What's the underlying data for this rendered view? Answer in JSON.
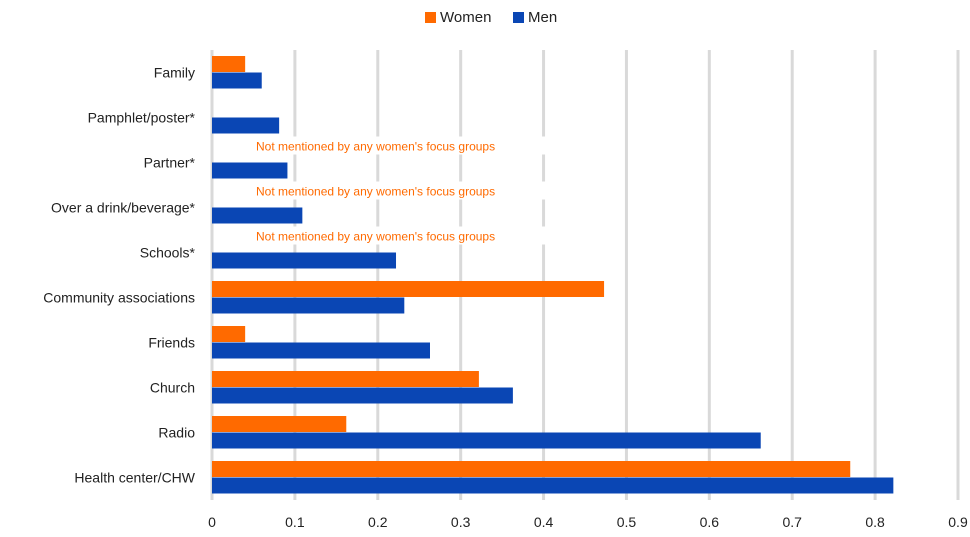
{
  "chart_data": {
    "type": "bar",
    "orientation": "horizontal",
    "title": "",
    "xlabel": "",
    "ylabel": "",
    "xlim": [
      0,
      0.9
    ],
    "xticks": [
      "0",
      "0.1",
      "0.2",
      "0.3",
      "0.4",
      "0.5",
      "0.6",
      "0.7",
      "0.8",
      "0.9"
    ],
    "grid": true,
    "legend_position": "top",
    "categories": [
      "Family",
      "Pamphlet/poster*",
      "Partner*",
      "Over a drink/beverage*",
      "Schools*",
      "Community associations",
      "Friends",
      "Church",
      "Radio",
      "Health center/CHW"
    ],
    "series": [
      {
        "name": "Women",
        "color": "#ff6a00",
        "values": [
          0.04,
          null,
          null,
          null,
          null,
          0.473,
          0.04,
          0.322,
          0.162,
          0.77
        ]
      },
      {
        "name": "Men",
        "color": "#0a46b4",
        "values": [
          0.06,
          0.081,
          0.091,
          0.109,
          0.222,
          0.232,
          0.263,
          0.363,
          0.662,
          0.822
        ]
      }
    ],
    "annotations": [
      {
        "category": "Partner*",
        "text": "Not mentioned by any women's focus groups"
      },
      {
        "category": "Over a drink/beverage*",
        "text": "Not mentioned by any women's focus groups"
      },
      {
        "category": "Schools*",
        "text": "Not mentioned by any women's focus groups"
      }
    ]
  }
}
